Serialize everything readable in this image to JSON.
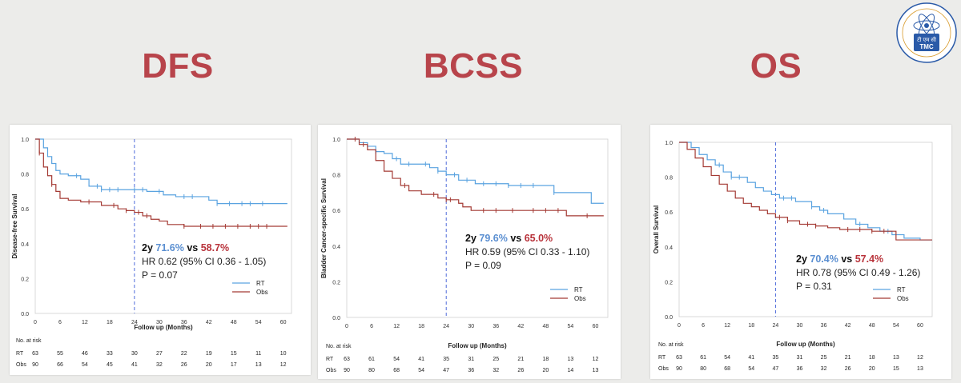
{
  "slide": {
    "panel_titles": [
      "DFS",
      "BCSS",
      "OS"
    ],
    "logo": {
      "icon": "atom-emblem",
      "text_devanagari": "टी एम सी",
      "text_latin": "TMC",
      "ring_text": "ATOMS IN THE SERVICE OF THE NATION"
    },
    "colors": {
      "title": "#b8444b",
      "rt": "#5aa3e0",
      "obs": "#a43a34",
      "rt_text": "#5b8fd1",
      "obs_text": "#b8323a",
      "cutoff": "#3b5bd6"
    }
  },
  "chart_data": [
    {
      "type": "line",
      "title": "DFS",
      "xlabel": "Follow up (Months)",
      "ylabel": "Disease-free Survival",
      "xlim": [
        0,
        62
      ],
      "ylim": [
        0,
        1
      ],
      "xticks": [
        0,
        6,
        12,
        18,
        24,
        30,
        36,
        42,
        48,
        54,
        60
      ],
      "yticks": [
        "0.0",
        "0.2",
        "0.4",
        "0.6",
        "0.8",
        "1.0"
      ],
      "cutoff_x": 24,
      "series": [
        {
          "name": "RT",
          "color": "#5aa3e0",
          "x": [
            0,
            2,
            3,
            4,
            5,
            6,
            8,
            11,
            13,
            16,
            22,
            27,
            31,
            34,
            42,
            44,
            61
          ],
          "y": [
            1.0,
            0.95,
            0.9,
            0.86,
            0.82,
            0.8,
            0.79,
            0.77,
            0.73,
            0.71,
            0.71,
            0.7,
            0.68,
            0.67,
            0.65,
            0.63,
            0.63
          ],
          "censor_x": [
            10,
            15,
            16,
            18,
            20,
            24,
            26,
            30,
            36,
            38,
            44,
            47,
            50,
            52,
            55
          ]
        },
        {
          "name": "Obs",
          "color": "#a43a34",
          "x": [
            0,
            1,
            2,
            3,
            4,
            5,
            6,
            8,
            11,
            16,
            20,
            22,
            24,
            26,
            28,
            30,
            32,
            36,
            61
          ],
          "y": [
            1.0,
            0.92,
            0.84,
            0.79,
            0.74,
            0.7,
            0.66,
            0.65,
            0.64,
            0.62,
            0.6,
            0.59,
            0.58,
            0.56,
            0.54,
            0.53,
            0.51,
            0.5,
            0.5
          ],
          "censor_x": [
            1,
            4,
            13,
            19,
            22,
            25,
            27,
            36,
            40,
            43,
            46,
            49,
            52,
            54,
            56
          ]
        }
      ],
      "annotation": {
        "period": "2y",
        "rt_pct": "71.6%",
        "vs": "vs",
        "obs_pct": "58.7%",
        "hr": "HR 0.62 (95% CI 0.36 - 1.05)",
        "p": "P = 0.07"
      },
      "legend": [
        "RT",
        "Obs"
      ],
      "risk_table": {
        "header": "No. at risk",
        "rows": [
          {
            "label": "RT",
            "values": [
              "63",
              "55",
              "46",
              "33",
              "30",
              "27",
              "22",
              "19",
              "15",
              "11",
              "10"
            ]
          },
          {
            "label": "Obs",
            "values": [
              "90",
              "66",
              "54",
              "45",
              "41",
              "32",
              "26",
              "20",
              "17",
              "13",
              "12"
            ]
          }
        ]
      }
    },
    {
      "type": "line",
      "title": "BCSS",
      "xlabel": "Follow up (Months)",
      "ylabel": "Bladder Cancer-specific Survival",
      "xlim": [
        0,
        63
      ],
      "ylim": [
        0,
        1
      ],
      "xticks": [
        0,
        6,
        12,
        18,
        24,
        30,
        36,
        42,
        48,
        54,
        60
      ],
      "yticks": [
        "0.0",
        "0.2",
        "0.4",
        "0.6",
        "0.8",
        "1.0"
      ],
      "cutoff_x": 24,
      "series": [
        {
          "name": "RT",
          "color": "#5aa3e0",
          "x": [
            0,
            3,
            5,
            7,
            9,
            11,
            13,
            16,
            20,
            22,
            24,
            27,
            31,
            39,
            50,
            55,
            59,
            62
          ],
          "y": [
            1.0,
            0.98,
            0.96,
            0.93,
            0.92,
            0.89,
            0.86,
            0.86,
            0.84,
            0.82,
            0.8,
            0.77,
            0.75,
            0.74,
            0.7,
            0.7,
            0.64,
            0.64
          ],
          "censor_x": [
            7,
            12,
            15,
            19,
            22,
            26,
            29,
            33,
            36,
            39,
            42,
            45,
            50
          ]
        },
        {
          "name": "Obs",
          "color": "#a43a34",
          "x": [
            0,
            3,
            5,
            7,
            9,
            11,
            13,
            15,
            18,
            22,
            24,
            27,
            28,
            30,
            53,
            62
          ],
          "y": [
            1.0,
            0.97,
            0.94,
            0.88,
            0.82,
            0.78,
            0.74,
            0.71,
            0.69,
            0.67,
            0.66,
            0.64,
            0.62,
            0.6,
            0.57,
            0.57
          ],
          "censor_x": [
            2,
            4,
            14,
            21,
            24,
            25,
            33,
            36,
            40,
            45,
            48,
            51,
            58
          ]
        }
      ],
      "annotation": {
        "period": "2y",
        "rt_pct": "79.6%",
        "vs": "vs",
        "obs_pct": "65.0%",
        "hr": "HR 0.59 (95% CI 0.33 - 1.10)",
        "p": "P = 0.09"
      },
      "legend": [
        "RT",
        "Obs"
      ],
      "risk_table": {
        "header": "No. at risk",
        "rows": [
          {
            "label": "RT",
            "values": [
              "63",
              "61",
              "54",
              "41",
              "35",
              "31",
              "25",
              "21",
              "18",
              "13",
              "12"
            ]
          },
          {
            "label": "Obs",
            "values": [
              "90",
              "80",
              "68",
              "54",
              "47",
              "36",
              "32",
              "26",
              "20",
              "14",
              "13"
            ]
          }
        ]
      }
    },
    {
      "type": "line",
      "title": "OS",
      "xlabel": "Follow up (Months)",
      "ylabel": "Overall Survival",
      "xlim": [
        0,
        63
      ],
      "ylim": [
        0,
        1
      ],
      "xticks": [
        0,
        6,
        12,
        18,
        24,
        30,
        36,
        42,
        48,
        54,
        60
      ],
      "yticks": [
        "0.0",
        "0.2",
        "0.4",
        "0.6",
        "0.8",
        "1.0"
      ],
      "cutoff_x": 24,
      "series": [
        {
          "name": "RT",
          "color": "#5aa3e0",
          "x": [
            0,
            3,
            5,
            7,
            9,
            11,
            13,
            17,
            19,
            21,
            23,
            25,
            29,
            33,
            35,
            37,
            41,
            44,
            47,
            50,
            53,
            56,
            60,
            63
          ],
          "y": [
            1.0,
            0.97,
            0.93,
            0.9,
            0.87,
            0.83,
            0.8,
            0.77,
            0.74,
            0.72,
            0.7,
            0.68,
            0.66,
            0.63,
            0.61,
            0.59,
            0.56,
            0.53,
            0.51,
            0.49,
            0.47,
            0.45,
            0.44,
            0.44
          ],
          "censor_x": [
            10,
            13,
            15,
            26,
            28,
            33,
            36,
            45,
            52
          ]
        },
        {
          "name": "Obs",
          "color": "#a43a34",
          "x": [
            0,
            2,
            4,
            6,
            8,
            10,
            12,
            14,
            16,
            18,
            20,
            22,
            24,
            27,
            30,
            34,
            37,
            40,
            48,
            54,
            63
          ],
          "y": [
            1.0,
            0.96,
            0.91,
            0.86,
            0.81,
            0.76,
            0.72,
            0.68,
            0.65,
            0.63,
            0.61,
            0.59,
            0.57,
            0.55,
            0.53,
            0.52,
            0.51,
            0.5,
            0.49,
            0.44,
            0.44
          ],
          "censor_x": [
            25,
            27,
            32,
            34,
            42,
            45,
            48,
            51
          ]
        }
      ],
      "annotation": {
        "period": "2y",
        "rt_pct": "70.4%",
        "vs": "vs",
        "obs_pct": "57.4%",
        "hr": "HR 0.78 (95% CI 0.49 - 1.26)",
        "p": "P = 0.31"
      },
      "legend": [
        "RT",
        "Obs"
      ],
      "risk_table": {
        "header": "No. at risk",
        "rows": [
          {
            "label": "RT",
            "values": [
              "63",
              "61",
              "54",
              "41",
              "35",
              "31",
              "25",
              "21",
              "18",
              "13",
              "12"
            ]
          },
          {
            "label": "Obs",
            "values": [
              "90",
              "80",
              "68",
              "54",
              "47",
              "36",
              "32",
              "26",
              "20",
              "15",
              "13"
            ]
          }
        ]
      }
    }
  ]
}
